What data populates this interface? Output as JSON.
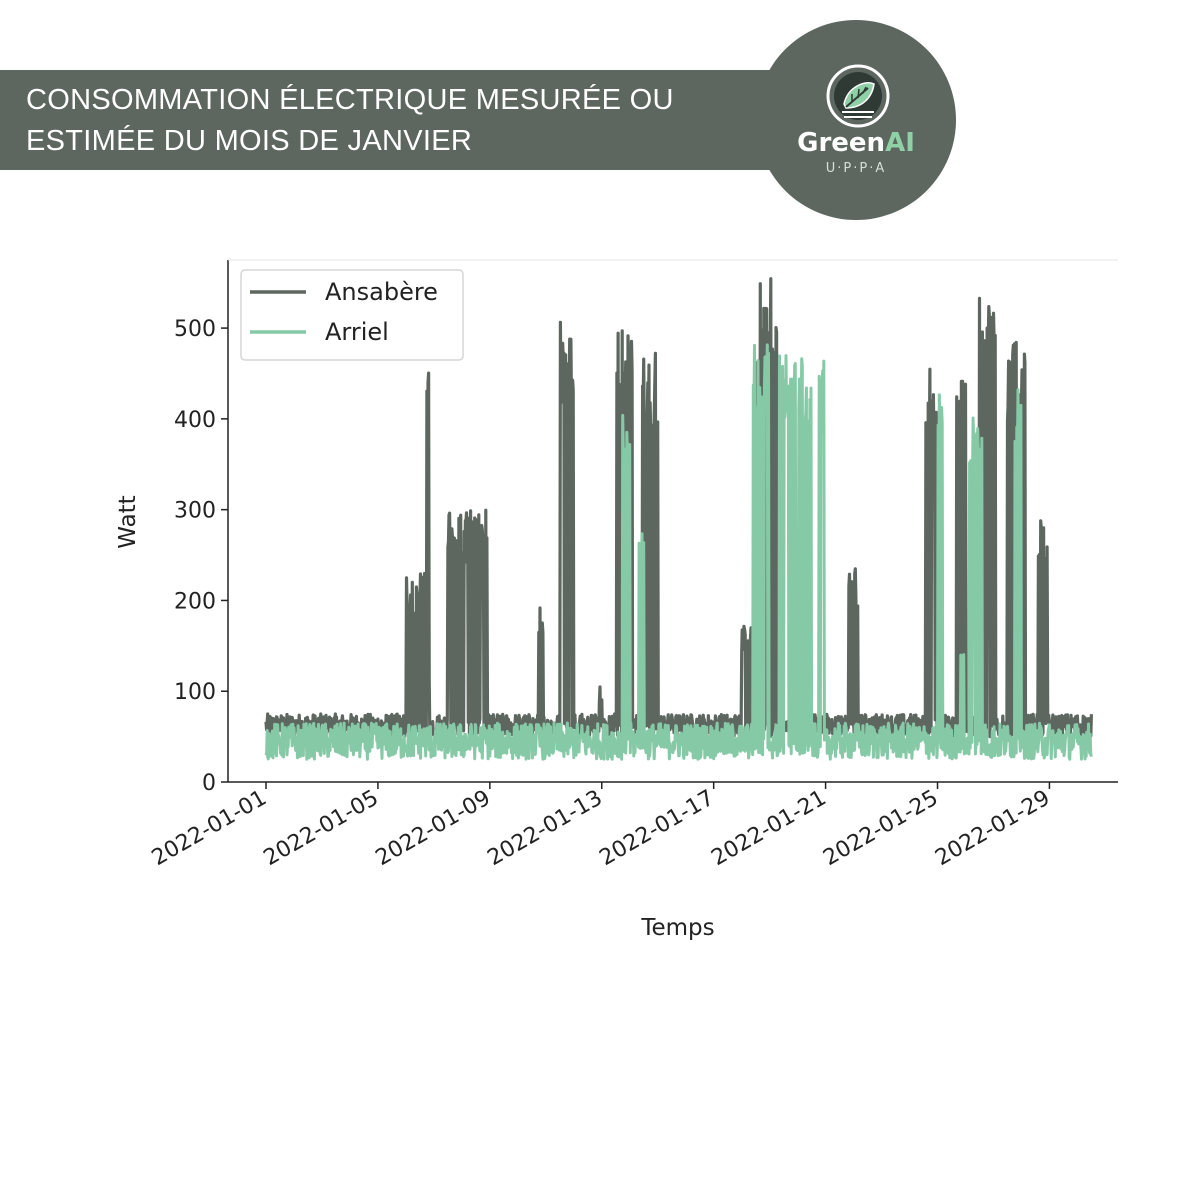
{
  "header": {
    "title_line1": "CONSOMMATION ÉLECTRIQUE MESURÉE OU",
    "title_line2": "ESTIMÉE DU MOIS DE JANVIER"
  },
  "logo": {
    "name_part1": "Green",
    "name_part2": "AI",
    "subtitle": "U·P·P·A",
    "icon": "leaf-globe-icon"
  },
  "colors": {
    "banner": "#5d6760",
    "ansabere": "#5d6760",
    "arriel": "#86c9a6"
  },
  "chart_data": {
    "type": "line",
    "xlabel": "Temps",
    "ylabel": "Watt",
    "xlim": [
      "2022-01-01",
      "2022-01-31"
    ],
    "ylim": [
      0,
      575
    ],
    "x_ticks": [
      "2022-01-01",
      "2022-01-05",
      "2022-01-09",
      "2022-01-13",
      "2022-01-17",
      "2022-01-21",
      "2022-01-25",
      "2022-01-29"
    ],
    "y_ticks": [
      0,
      100,
      200,
      300,
      400,
      500
    ],
    "legend": "top-left",
    "grid": false,
    "series": [
      {
        "name": "Ansabère",
        "color": "#5d6760",
        "baseline": [
          50,
          75
        ],
        "bursts": [
          {
            "start": "2022-01-06 00:00",
            "end": "2022-01-06 16:00",
            "min": 50,
            "max": 230
          },
          {
            "start": "2022-01-06 18:00",
            "end": "2022-01-06 20:00",
            "min": 100,
            "max": 465
          },
          {
            "start": "2022-01-07 12:00",
            "end": "2022-01-08 22:00",
            "min": 50,
            "max": 300
          },
          {
            "start": "2022-01-10 18:00",
            "end": "2022-01-10 22:00",
            "min": 50,
            "max": 195
          },
          {
            "start": "2022-01-11 12:00",
            "end": "2022-01-12 00:00",
            "min": 50,
            "max": 515
          },
          {
            "start": "2022-01-12 20:00",
            "end": "2022-01-13 00:00",
            "min": 50,
            "max": 110
          },
          {
            "start": "2022-01-13 12:00",
            "end": "2022-01-14 02:00",
            "min": 50,
            "max": 500
          },
          {
            "start": "2022-01-14 10:00",
            "end": "2022-01-15 00:00",
            "min": 50,
            "max": 475
          },
          {
            "start": "2022-01-18 00:00",
            "end": "2022-01-18 18:00",
            "min": 50,
            "max": 175
          },
          {
            "start": "2022-01-18 12:00",
            "end": "2022-01-19 06:00",
            "min": 50,
            "max": 555
          },
          {
            "start": "2022-01-21 20:00",
            "end": "2022-01-22 04:00",
            "min": 50,
            "max": 235
          },
          {
            "start": "2022-01-24 12:00",
            "end": "2022-01-25 00:00",
            "min": 50,
            "max": 465
          },
          {
            "start": "2022-01-25 16:00",
            "end": "2022-01-26 00:00",
            "min": 50,
            "max": 490
          },
          {
            "start": "2022-01-26 12:00",
            "end": "2022-01-27 02:00",
            "min": 50,
            "max": 535
          },
          {
            "start": "2022-01-27 12:00",
            "end": "2022-01-28 04:00",
            "min": 50,
            "max": 485
          },
          {
            "start": "2022-01-28 14:00",
            "end": "2022-01-28 22:00",
            "min": 50,
            "max": 290
          }
        ]
      },
      {
        "name": "Arriel",
        "color": "#86c9a6",
        "baseline": [
          25,
          65
        ],
        "bursts": [
          {
            "start": "2022-01-13 18:00",
            "end": "2022-01-14 00:00",
            "min": 30,
            "max": 415
          },
          {
            "start": "2022-01-14 08:00",
            "end": "2022-01-14 12:00",
            "min": 30,
            "max": 275
          },
          {
            "start": "2022-01-18 10:00",
            "end": "2022-01-19 00:00",
            "min": 30,
            "max": 485
          },
          {
            "start": "2022-01-19 08:00",
            "end": "2022-01-20 12:00",
            "min": 30,
            "max": 475
          },
          {
            "start": "2022-01-20 18:00",
            "end": "2022-01-21 00:00",
            "min": 30,
            "max": 465
          },
          {
            "start": "2022-01-25 00:00",
            "end": "2022-01-25 04:00",
            "min": 30,
            "max": 435
          },
          {
            "start": "2022-01-25 20:00",
            "end": "2022-01-26 00:00",
            "min": 30,
            "max": 145
          },
          {
            "start": "2022-01-26 02:00",
            "end": "2022-01-26 14:00",
            "min": 30,
            "max": 405
          },
          {
            "start": "2022-01-27 18:00",
            "end": "2022-01-28 00:00",
            "min": 30,
            "max": 450
          }
        ]
      }
    ]
  }
}
